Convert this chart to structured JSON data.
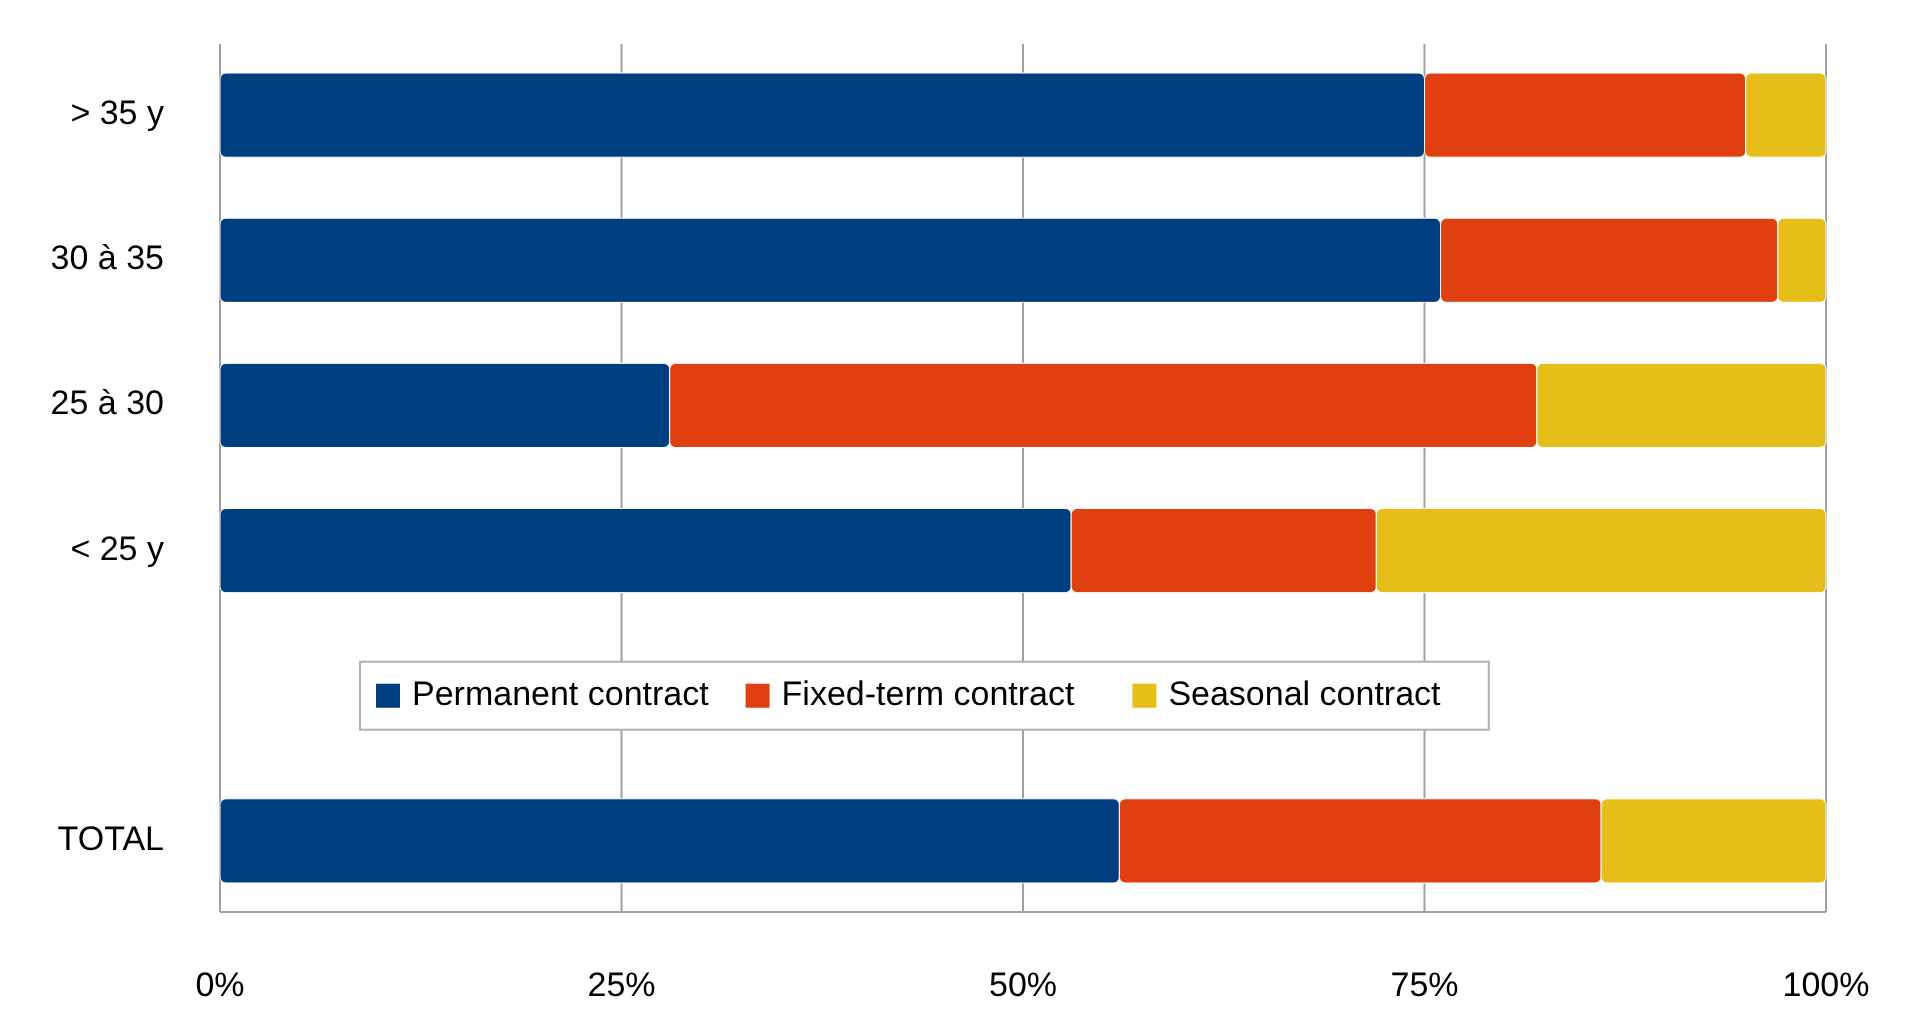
{
  "chart_data": {
    "type": "bar",
    "orientation": "horizontal",
    "stacked": true,
    "categories": [
      "> 35 y",
      "30 à 35",
      "25 à 30",
      "< 25 y",
      null,
      "TOTAL"
    ],
    "series": [
      {
        "name": "Permanent contract",
        "color": "#003f7f",
        "values": [
          75,
          76,
          28,
          53,
          null,
          56
        ]
      },
      {
        "name": "Fixed-term contract",
        "color": "#e0400f",
        "values": [
          20,
          21,
          54,
          19,
          null,
          30
        ]
      },
      {
        "name": "Seasonal contract",
        "color": "#e6be1a",
        "values": [
          5,
          3,
          18,
          28,
          null,
          14
        ]
      }
    ],
    "xlim": [
      0,
      100
    ],
    "xticks": [
      {
        "value": 0,
        "label": "0%"
      },
      {
        "value": 25,
        "label": "25%"
      },
      {
        "value": 50,
        "label": "50%"
      },
      {
        "value": 75,
        "label": "75%"
      },
      {
        "value": 100,
        "label": "100%"
      }
    ],
    "grid": "x",
    "legend": "bottom"
  }
}
